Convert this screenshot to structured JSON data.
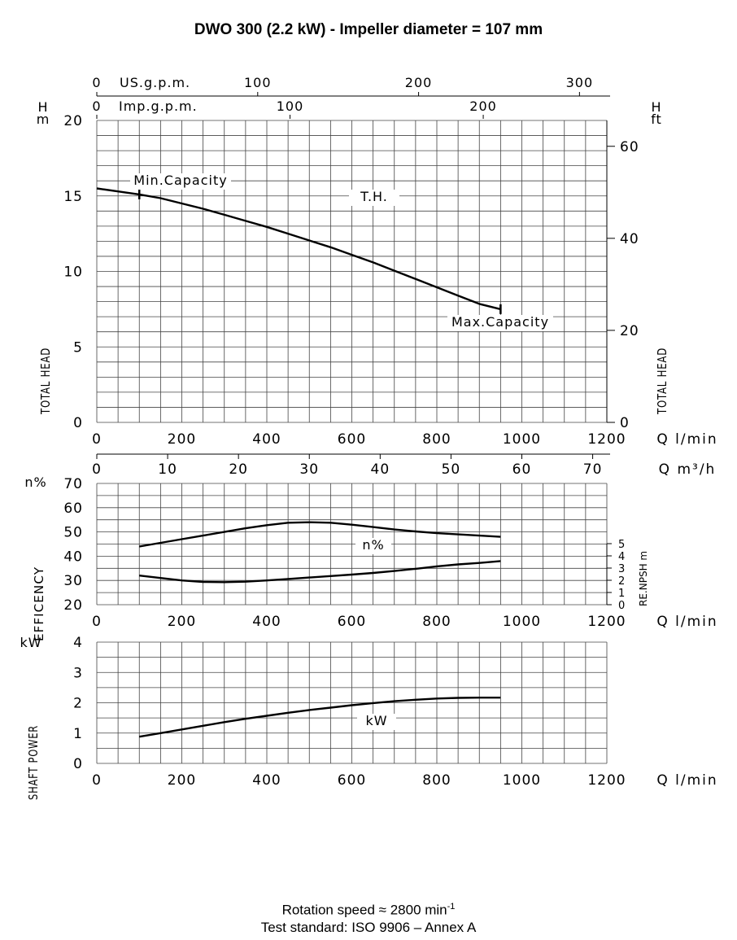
{
  "title": "DWO 300 (2.2 kW) - Impeller diameter = 107 mm",
  "footer": {
    "rotation_prefix": "Rotation speed ≈ 2800 min",
    "rotation_sup": "-1",
    "standard": "Test standard: ISO 9906 – Annex A"
  },
  "chart_data": [
    {
      "type": "line",
      "id": "head",
      "xlabel": "Q l/min",
      "xlim": [
        0,
        1200
      ],
      "xticks": [
        0,
        200,
        400,
        600,
        800,
        1000,
        1200
      ],
      "left_axis": {
        "unit": "H\nm",
        "label": "TOTAL HEAD",
        "ylim": [
          0,
          20
        ],
        "ticks": [
          0,
          5,
          10,
          15,
          20
        ]
      },
      "right_axis": {
        "unit": "H\nft",
        "label": "TOTAL HEAD",
        "ticks": [
          0,
          20,
          40,
          60
        ]
      },
      "top_axes": [
        {
          "label": "US.g.p.m.",
          "ticks": [
            0,
            100,
            200,
            300
          ]
        },
        {
          "label": "Imp.g.p.m.",
          "ticks": [
            0,
            100,
            200
          ]
        }
      ],
      "grid": true,
      "series": [
        {
          "x": [
            0,
            50,
            100,
            150,
            200,
            250,
            300,
            350,
            400,
            450,
            500,
            550,
            600,
            650,
            700,
            750,
            800,
            850,
            900,
            950
          ],
          "y": [
            15.5,
            15.3,
            15.1,
            14.85,
            14.5,
            14.15,
            13.75,
            13.35,
            12.95,
            12.5,
            12.05,
            11.6,
            11.1,
            10.6,
            10.05,
            9.5,
            8.95,
            8.4,
            7.85,
            7.5
          ]
        }
      ],
      "curve_label": "T.H.",
      "markers": [
        {
          "x": 100,
          "y": 15.1,
          "label": "Min.Capacity"
        },
        {
          "x": 950,
          "y": 7.5,
          "label": "Max.Capacity"
        }
      ]
    },
    {
      "type": "line",
      "id": "efficiency",
      "xlabel": "Q l/min",
      "xlim": [
        0,
        1200
      ],
      "xticks": [
        0,
        200,
        400,
        600,
        800,
        1000,
        1200
      ],
      "top_axis": {
        "label": "Q m³/h",
        "ticks": [
          0,
          10,
          20,
          30,
          40,
          50,
          60,
          70
        ]
      },
      "left_axis": {
        "unit": "n%",
        "label": "EFFICENCY",
        "ylim": [
          20,
          70
        ],
        "ticks": [
          20,
          30,
          40,
          50,
          60,
          70
        ]
      },
      "right_axis": {
        "unit": "m",
        "label": "RE.NPSH",
        "ylim": [
          0,
          5
        ],
        "ticks": [
          0,
          1,
          2,
          3,
          4,
          5
        ]
      },
      "grid": true,
      "series": [
        {
          "name": "efficiency",
          "x": [
            100,
            150,
            200,
            250,
            300,
            350,
            400,
            450,
            500,
            550,
            600,
            650,
            700,
            750,
            800,
            850,
            900,
            950
          ],
          "y": [
            44,
            45.5,
            47,
            48.5,
            50,
            51.5,
            52.8,
            53.8,
            54,
            53.8,
            53,
            52,
            51,
            50.2,
            49.5,
            49,
            48.5,
            48
          ]
        },
        {
          "name": "npsh",
          "x": [
            100,
            150,
            200,
            250,
            300,
            350,
            400,
            450,
            500,
            550,
            600,
            650,
            700,
            750,
            800,
            850,
            900,
            950
          ],
          "y": [
            32,
            31,
            30,
            29.4,
            29.3,
            29.5,
            30,
            30.6,
            31.2,
            31.8,
            32.4,
            33.1,
            33.9,
            34.8,
            35.8,
            36.6,
            37.2,
            38
          ]
        }
      ],
      "curve_label": "n%"
    },
    {
      "type": "line",
      "id": "power",
      "xlabel": "Q l/min",
      "xlim": [
        0,
        1200
      ],
      "xticks": [
        0,
        200,
        400,
        600,
        800,
        1000,
        1200
      ],
      "left_axis": {
        "unit": "kW",
        "label": "SHAFT POWER",
        "ylim": [
          0,
          4
        ],
        "ticks": [
          0,
          1,
          2,
          3,
          4
        ]
      },
      "grid": true,
      "series": [
        {
          "x": [
            100,
            150,
            200,
            250,
            300,
            350,
            400,
            450,
            500,
            550,
            600,
            650,
            700,
            750,
            800,
            850,
            900,
            950
          ],
          "y": [
            0.88,
            1.0,
            1.12,
            1.24,
            1.36,
            1.47,
            1.57,
            1.67,
            1.76,
            1.84,
            1.92,
            1.99,
            2.05,
            2.1,
            2.14,
            2.16,
            2.17,
            2.17
          ]
        }
      ],
      "curve_label": "kW"
    }
  ]
}
